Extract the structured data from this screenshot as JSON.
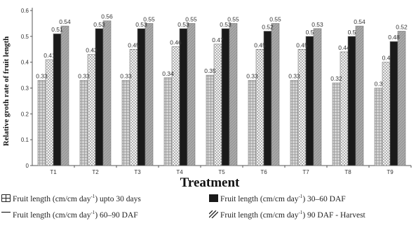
{
  "chart_data": {
    "type": "bar",
    "categories": [
      "T1",
      "T2",
      "T3",
      "T4",
      "T5",
      "T6",
      "T7",
      "T8",
      "T9"
    ],
    "series": [
      {
        "name": "Fruit length (cm/cm day-1) upto 30 days",
        "values": [
          0.33,
          0.33,
          0.33,
          0.34,
          0.35,
          0.33,
          0.33,
          0.32,
          0.3
        ],
        "color": "#d0d0d0",
        "pattern": "grid"
      },
      {
        "name": "Fruit length (cm/cm day-1) 60–90 DAF",
        "values": [
          0.41,
          0.43,
          0.45,
          0.46,
          0.47,
          0.45,
          0.45,
          0.44,
          0.4
        ],
        "color": "#eeeeee",
        "pattern": "dots"
      },
      {
        "name": "Fruit length (cm/cm day-1) 30–60 DAF",
        "values": [
          0.51,
          0.53,
          0.53,
          0.53,
          0.53,
          0.52,
          0.5,
          0.5,
          0.48
        ],
        "color": "#1a1a1a",
        "pattern": "solid"
      },
      {
        "name": "Fruit length (cm/cm day-1) 90 DAF - Harvest",
        "values": [
          0.54,
          0.56,
          0.55,
          0.55,
          0.55,
          0.55,
          0.53,
          0.54,
          0.52
        ],
        "color": "#a8a8a8",
        "pattern": "hatch"
      }
    ],
    "data_labels": [
      [
        "0.33",
        "0.33",
        "0.33",
        "0.34",
        "0.35",
        "0.33",
        "0.33",
        "0.32",
        "0.3"
      ],
      [
        "0.41",
        "0.43",
        "0.45",
        "0.46",
        "0.47",
        "0.45",
        "0.45",
        "0.44",
        "0.4"
      ],
      [
        "0.51",
        "0.53",
        "0.53",
        "0.53",
        "0.53",
        "0.52",
        "0.5",
        "0.5",
        "0.48"
      ],
      [
        "0.54",
        "0.56",
        "0.55",
        "0.55",
        "0.55",
        "0.55",
        "0.53",
        "0.54",
        "0.52"
      ]
    ],
    "ylabel": "Relative groth rate of fruit length",
    "xlabel": "Treatment",
    "ylim": [
      0,
      0.6
    ],
    "yticks": [
      "0",
      "0.1",
      "0.2",
      "0.3",
      "0.4",
      "0.5",
      "0.6"
    ],
    "grid": false,
    "legend_position": "bottom"
  },
  "legend": {
    "item1": {
      "prefix": "Fruit length (cm/cm day",
      "sup": "-1",
      "suffix": ") upto 30 days"
    },
    "item2": {
      "prefix": "Fruit length (cm/cm day",
      "sup": "-1",
      "suffix": ") 30–60 DAF"
    },
    "item3": {
      "prefix": "Fruit length (cm/cm day",
      "sup": "-1",
      "suffix": ") 60–90 DAF"
    },
    "item4": {
      "prefix": "Fruit length (cm/cm day",
      "sup": "-1",
      "suffix": ") 90 DAF - Harvest"
    }
  }
}
